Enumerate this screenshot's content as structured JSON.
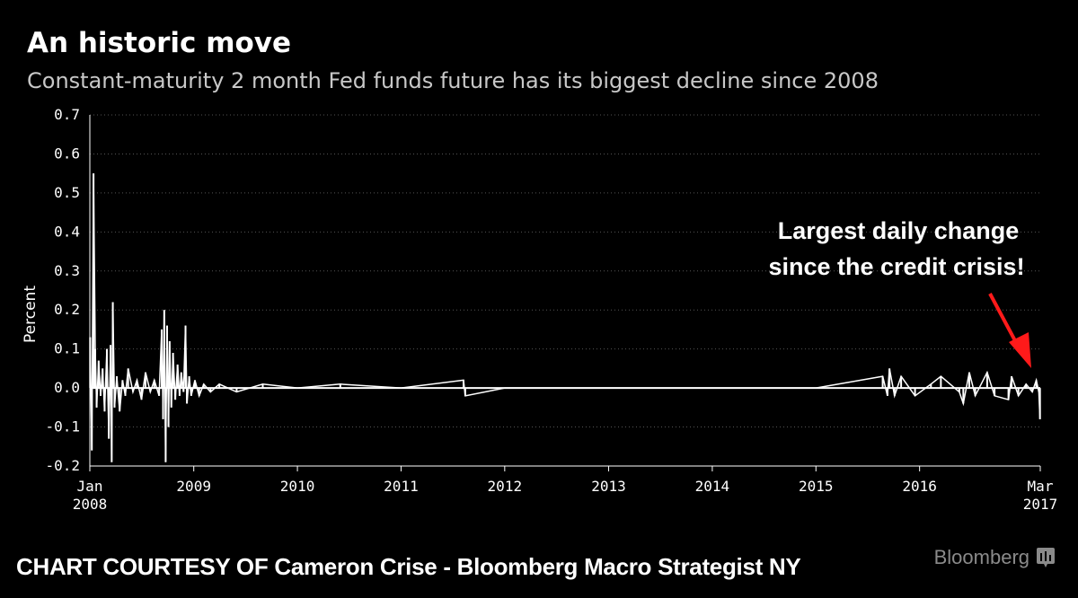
{
  "header": {
    "title": "An historic move",
    "subtitle": "Constant-maturity 2 month Fed funds future has its biggest decline since 2008"
  },
  "footer": {
    "credit": "CHART COURTESY OF Cameron Crise - Bloomberg Macro Strategist NY",
    "brand": "Bloomberg",
    "brand_icon": "bloomberg-terminal-icon"
  },
  "colors": {
    "background": "#000000",
    "series": "#ffffff",
    "grid": "#555555",
    "arrow": "#ff1a1a",
    "brand": "#8a8a8a"
  },
  "chart_data": {
    "type": "line",
    "title": "An historic move",
    "subtitle": "Constant-maturity 2 month Fed funds future has its biggest decline since 2008",
    "ylabel": "Percent",
    "xlabel": "",
    "ylim": [
      -0.2,
      0.7
    ],
    "yticks": [
      "0.7",
      "0.6",
      "0.5",
      "0.4",
      "0.3",
      "0.2",
      "0.1",
      "0.0",
      "-0.1",
      "-0.2"
    ],
    "ytick_values": [
      0.7,
      0.6,
      0.5,
      0.4,
      0.3,
      0.2,
      0.1,
      0.0,
      -0.1,
      -0.2
    ],
    "xlim": [
      "2008-01-01",
      "2017-03-01"
    ],
    "xticks": [
      {
        "date": "2008-01-01",
        "line1": "Jan",
        "line2": "2008"
      },
      {
        "date": "2009-01-01",
        "line1": "2009",
        "line2": ""
      },
      {
        "date": "2010-01-01",
        "line1": "2010",
        "line2": ""
      },
      {
        "date": "2011-01-01",
        "line1": "2011",
        "line2": ""
      },
      {
        "date": "2012-01-01",
        "line1": "2012",
        "line2": ""
      },
      {
        "date": "2013-01-01",
        "line1": "2013",
        "line2": ""
      },
      {
        "date": "2014-01-01",
        "line1": "2014",
        "line2": ""
      },
      {
        "date": "2015-01-01",
        "line1": "2015",
        "line2": ""
      },
      {
        "date": "2016-01-01",
        "line1": "2016",
        "line2": ""
      },
      {
        "date": "2017-03-01",
        "line1": "Mar",
        "line2": "2017"
      }
    ],
    "grid": true,
    "grid_style": "dotted horizontal",
    "annotation": {
      "lines": [
        "Largest daily change",
        "since the credit crisis!"
      ],
      "arrow_color": "#ff1a1a",
      "points_to": {
        "date": "2017-03-01",
        "value": -0.08
      }
    },
    "series": [
      {
        "values": [
          {
            "x": "2008-01-02",
            "y": 0.13
          },
          {
            "x": "2008-01-08",
            "y": -0.16
          },
          {
            "x": "2008-01-14",
            "y": 0.55
          },
          {
            "x": "2008-01-20",
            "y": 0.1
          },
          {
            "x": "2008-01-25",
            "y": -0.05
          },
          {
            "x": "2008-02-01",
            "y": 0.07
          },
          {
            "x": "2008-02-08",
            "y": -0.02
          },
          {
            "x": "2008-02-15",
            "y": 0.05
          },
          {
            "x": "2008-02-22",
            "y": -0.06
          },
          {
            "x": "2008-03-01",
            "y": 0.1
          },
          {
            "x": "2008-03-08",
            "y": -0.13
          },
          {
            "x": "2008-03-14",
            "y": 0.11
          },
          {
            "x": "2008-03-18",
            "y": -0.19
          },
          {
            "x": "2008-03-22",
            "y": 0.22
          },
          {
            "x": "2008-03-28",
            "y": -0.05
          },
          {
            "x": "2008-04-05",
            "y": 0.03
          },
          {
            "x": "2008-04-15",
            "y": -0.06
          },
          {
            "x": "2008-04-25",
            "y": 0.02
          },
          {
            "x": "2008-05-05",
            "y": -0.02
          },
          {
            "x": "2008-05-15",
            "y": 0.05
          },
          {
            "x": "2008-06-01",
            "y": -0.01
          },
          {
            "x": "2008-06-15",
            "y": 0.02
          },
          {
            "x": "2008-07-01",
            "y": -0.03
          },
          {
            "x": "2008-07-15",
            "y": 0.04
          },
          {
            "x": "2008-08-01",
            "y": -0.01
          },
          {
            "x": "2008-08-15",
            "y": 0.02
          },
          {
            "x": "2008-09-01",
            "y": -0.02
          },
          {
            "x": "2008-09-10",
            "y": 0.15
          },
          {
            "x": "2008-09-15",
            "y": -0.08
          },
          {
            "x": "2008-09-19",
            "y": 0.2
          },
          {
            "x": "2008-09-24",
            "y": -0.19
          },
          {
            "x": "2008-09-29",
            "y": 0.16
          },
          {
            "x": "2008-10-04",
            "y": -0.1
          },
          {
            "x": "2008-10-08",
            "y": 0.12
          },
          {
            "x": "2008-10-14",
            "y": -0.05
          },
          {
            "x": "2008-10-20",
            "y": 0.09
          },
          {
            "x": "2008-10-28",
            "y": -0.03
          },
          {
            "x": "2008-11-05",
            "y": 0.06
          },
          {
            "x": "2008-11-12",
            "y": -0.02
          },
          {
            "x": "2008-11-18",
            "y": 0.04
          },
          {
            "x": "2008-11-26",
            "y": -0.01
          },
          {
            "x": "2008-12-03",
            "y": 0.16
          },
          {
            "x": "2008-12-08",
            "y": -0.04
          },
          {
            "x": "2008-12-16",
            "y": 0.03
          },
          {
            "x": "2008-12-23",
            "y": -0.02
          },
          {
            "x": "2009-01-05",
            "y": 0.02
          },
          {
            "x": "2009-01-20",
            "y": -0.02
          },
          {
            "x": "2009-02-05",
            "y": 0.01
          },
          {
            "x": "2009-03-01",
            "y": -0.01
          },
          {
            "x": "2009-04-01",
            "y": 0.01
          },
          {
            "x": "2009-06-01",
            "y": -0.01
          },
          {
            "x": "2009-09-01",
            "y": 0.01
          },
          {
            "x": "2010-01-01",
            "y": 0.0
          },
          {
            "x": "2010-06-01",
            "y": 0.01
          },
          {
            "x": "2011-01-01",
            "y": 0.0
          },
          {
            "x": "2011-08-09",
            "y": 0.02
          },
          {
            "x": "2011-08-15",
            "y": -0.02
          },
          {
            "x": "2012-01-01",
            "y": 0.0
          },
          {
            "x": "2013-01-01",
            "y": 0.0
          },
          {
            "x": "2014-01-01",
            "y": 0.0
          },
          {
            "x": "2015-01-01",
            "y": 0.0
          },
          {
            "x": "2015-08-24",
            "y": 0.03
          },
          {
            "x": "2015-09-10",
            "y": -0.02
          },
          {
            "x": "2015-09-17",
            "y": 0.05
          },
          {
            "x": "2015-10-05",
            "y": -0.02
          },
          {
            "x": "2015-10-28",
            "y": 0.03
          },
          {
            "x": "2015-12-16",
            "y": -0.02
          },
          {
            "x": "2016-02-10",
            "y": 0.01
          },
          {
            "x": "2016-03-16",
            "y": 0.03
          },
          {
            "x": "2016-05-20",
            "y": -0.01
          },
          {
            "x": "2016-06-03",
            "y": -0.04
          },
          {
            "x": "2016-06-24",
            "y": 0.04
          },
          {
            "x": "2016-07-15",
            "y": -0.02
          },
          {
            "x": "2016-08-26",
            "y": 0.04
          },
          {
            "x": "2016-09-21",
            "y": -0.02
          },
          {
            "x": "2016-11-09",
            "y": -0.03
          },
          {
            "x": "2016-11-20",
            "y": 0.03
          },
          {
            "x": "2016-12-14",
            "y": -0.02
          },
          {
            "x": "2017-01-10",
            "y": 0.01
          },
          {
            "x": "2017-02-01",
            "y": -0.01
          },
          {
            "x": "2017-02-15",
            "y": 0.02
          },
          {
            "x": "2017-02-24",
            "y": -0.01
          },
          {
            "x": "2017-02-28",
            "y": -0.08
          }
        ]
      }
    ]
  }
}
